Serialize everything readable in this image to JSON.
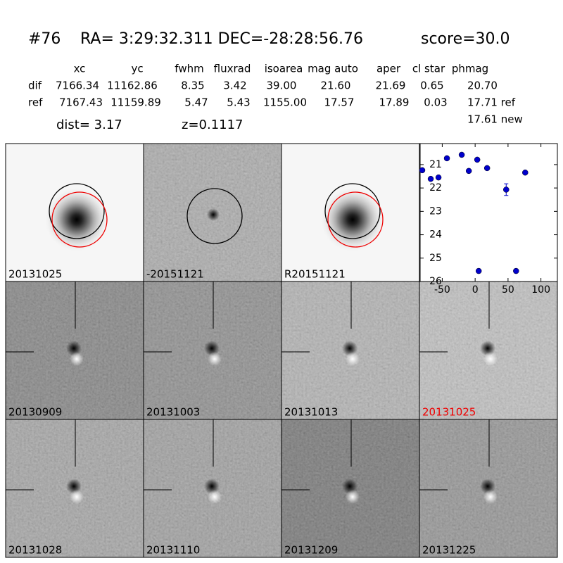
{
  "header": {
    "id": "#76",
    "coords": "RA= 3:29:32.311 DEC=-28:28:56.76",
    "score": "score=30.0"
  },
  "table": {
    "columns": [
      "xc",
      "yc",
      "fwhm",
      "fluxrad",
      "isoarea",
      "mag auto",
      "aper",
      "cl star",
      "phmag"
    ],
    "rows": [
      {
        "label": "dif",
        "cells": [
          "7166.34",
          "11162.86",
          "8.35",
          "3.42",
          "39.00",
          "21.60",
          "21.69",
          "0.65",
          "20.70"
        ]
      },
      {
        "label": "ref",
        "cells": [
          "7167.43",
          "11159.89",
          "5.47",
          "5.43",
          "1155.00",
          "17.57",
          "17.89",
          "0.03",
          "17.71 ref"
        ]
      }
    ],
    "note": "17.61 new"
  },
  "dist": "dist=  3.17",
  "z": "z=0.1117",
  "panels": [
    "20131025",
    "-20151121",
    "R20151121",
    "20130909",
    "20131003",
    "20131013",
    "20131025",
    "20131028",
    "20131110",
    "20131209",
    "20131225"
  ],
  "chart_data": {
    "type": "scatter",
    "x": [
      -80.4,
      -67.5,
      -55.7,
      -42.9,
      -20.4,
      -9.6,
      3.2,
      18.2,
      47.2,
      76.1,
      5.4,
      62.2
    ],
    "values": [
      21.24,
      21.61,
      21.55,
      20.73,
      20.58,
      21.27,
      20.79,
      21.15,
      22.07,
      21.34,
      25.55,
      25.55
    ],
    "errors": [
      0.05,
      0.05,
      0.05,
      0.05,
      0.04,
      0.05,
      0.05,
      0.05,
      0.25,
      0.05,
      0.08,
      0.08
    ],
    "color": "#0000cc",
    "xlim": [
      -83.6,
      125
    ],
    "ylim": [
      20.1,
      26
    ],
    "y_inverted": true,
    "xticks": [
      -50,
      0,
      50,
      100
    ],
    "yticks": [
      21,
      22,
      23,
      24,
      25,
      26
    ]
  }
}
